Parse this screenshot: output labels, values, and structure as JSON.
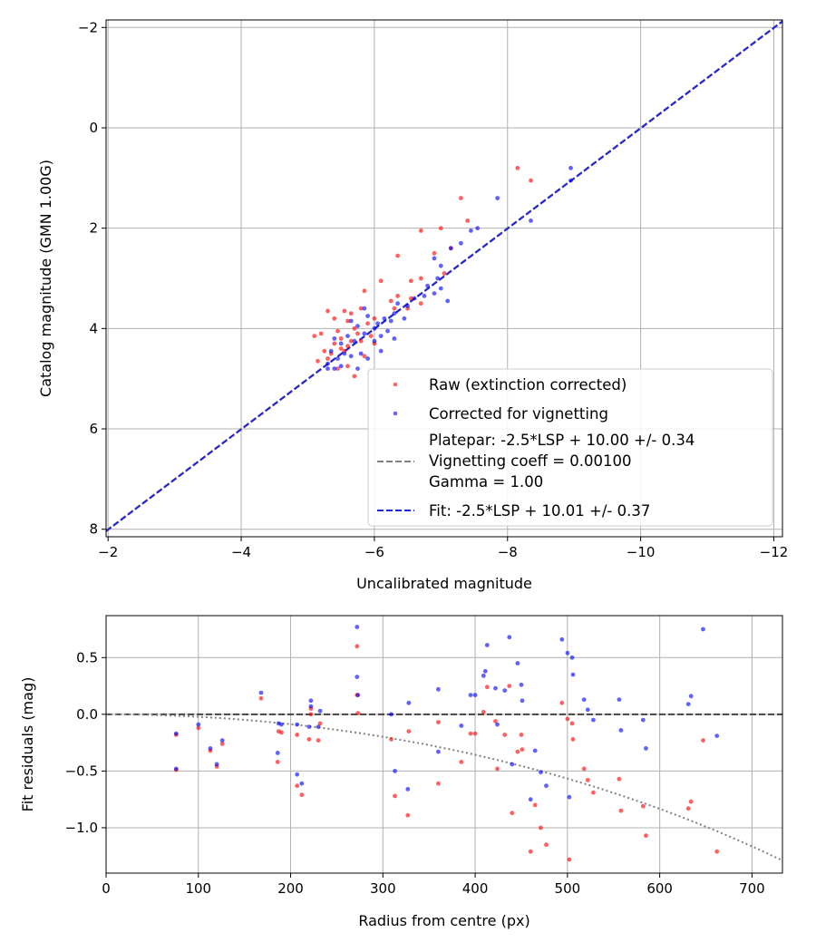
{
  "chart_data": [
    {
      "type": "scatter",
      "xlabel": "Uncalibrated magnitude",
      "ylabel": "Catalog magnitude (GMN 1.00G)",
      "xlim": [
        -1.97,
        -12.13
      ],
      "ylim": [
        8.15,
        -2.15
      ],
      "xticks": [
        -2,
        -4,
        -6,
        -8,
        -10,
        -12
      ],
      "yticks": [
        -2,
        0,
        2,
        4,
        6,
        8
      ],
      "xtick_labels": [
        "−2",
        "−4",
        "−6",
        "−8",
        "−10",
        "−12"
      ],
      "ytick_labels": [
        "−2",
        "0",
        "2",
        "4",
        "6",
        "8"
      ],
      "grid": true,
      "legend_position": "lower-right",
      "colors": {
        "raw": "#ff0000",
        "corrected": "#0000ff",
        "platepar": "#808080",
        "fit": "#2222dd"
      },
      "legend": {
        "raw_label": "Raw (extinction corrected)",
        "corrected_label": "Corrected for vignetting",
        "platepar_line1": "Platepar: -2.5*LSP + 10.00 +/- 0.34",
        "platepar_line2": "Vignetting coeff = 0.00100",
        "platepar_line3": "Gamma = 1.00",
        "fit_label": "Fit: -2.5*LSP + 10.01 +/- 0.37"
      },
      "lines": [
        {
          "name": "Platepar: -2.5*LSP + 10.00 +/- 0.34",
          "style": "dashed",
          "color": "#808080",
          "x": [
            -1.97,
            -12.13
          ],
          "y": [
            8.03,
            -2.13
          ]
        },
        {
          "name": "Fit: -2.5*LSP + 10.01 +/- 0.37",
          "style": "dashed",
          "color": "#2222dd",
          "x": [
            -1.97,
            -12.13
          ],
          "y": [
            8.04,
            -2.12
          ]
        }
      ],
      "series": [
        {
          "name": "Raw (extinction corrected)",
          "color": "#ff0000",
          "points": [
            [
              -8.15,
              0.8
            ],
            [
              -8.35,
              1.05
            ],
            [
              -7.3,
              1.4
            ],
            [
              -7.4,
              1.85
            ],
            [
              -7.0,
              2.0
            ],
            [
              -6.7,
              2.05
            ],
            [
              -7.15,
              2.4
            ],
            [
              -6.35,
              2.55
            ],
            [
              -6.9,
              2.5
            ],
            [
              -7.05,
              2.9
            ],
            [
              -6.7,
              3.0
            ],
            [
              -6.55,
              3.05
            ],
            [
              -6.1,
              3.05
            ],
            [
              -5.85,
              3.25
            ],
            [
              -6.35,
              3.35
            ],
            [
              -6.55,
              3.4
            ],
            [
              -6.25,
              3.45
            ],
            [
              -6.7,
              3.5
            ],
            [
              -6.5,
              3.6
            ],
            [
              -6.3,
              3.6
            ],
            [
              -5.55,
              3.65
            ],
            [
              -5.3,
              3.65
            ],
            [
              -5.8,
              3.6
            ],
            [
              -5.65,
              3.7
            ],
            [
              -5.4,
              3.8
            ],
            [
              -5.6,
              3.85
            ],
            [
              -5.9,
              3.9
            ],
            [
              -6.0,
              3.8
            ],
            [
              -5.7,
              4.0
            ],
            [
              -5.45,
              4.05
            ],
            [
              -5.2,
              4.1
            ],
            [
              -5.75,
              4.1
            ],
            [
              -5.95,
              4.15
            ],
            [
              -5.5,
              4.2
            ],
            [
              -5.65,
              4.25
            ],
            [
              -5.1,
              4.15
            ],
            [
              -5.6,
              4.35
            ],
            [
              -5.4,
              4.3
            ],
            [
              -5.55,
              4.45
            ],
            [
              -5.35,
              4.5
            ],
            [
              -5.25,
              4.45
            ],
            [
              -5.15,
              4.65
            ],
            [
              -5.3,
              4.6
            ],
            [
              -5.45,
              4.8
            ],
            [
              -5.7,
              4.95
            ],
            [
              -5.6,
              4.75
            ],
            [
              -5.8,
              4.25
            ],
            [
              -5.85,
              4.55
            ],
            [
              -6.0,
              4.3
            ],
            [
              -5.5,
              4.4
            ]
          ]
        },
        {
          "name": "Corrected for vignetting",
          "color": "#0000ff",
          "points": [
            [
              -8.95,
              0.8
            ],
            [
              -8.95,
              1.05
            ],
            [
              -7.85,
              1.4
            ],
            [
              -8.35,
              1.85
            ],
            [
              -7.55,
              2.0
            ],
            [
              -7.45,
              2.05
            ],
            [
              -7.15,
              2.4
            ],
            [
              -7.3,
              2.3
            ],
            [
              -6.9,
              2.6
            ],
            [
              -7.0,
              2.75
            ],
            [
              -6.95,
              3.0
            ],
            [
              -6.8,
              3.15
            ],
            [
              -7.0,
              3.2
            ],
            [
              -6.9,
              3.3
            ],
            [
              -6.75,
              3.35
            ],
            [
              -7.1,
              3.45
            ],
            [
              -6.6,
              3.4
            ],
            [
              -6.5,
              3.55
            ],
            [
              -6.35,
              3.5
            ],
            [
              -6.3,
              3.7
            ],
            [
              -6.45,
              3.8
            ],
            [
              -6.15,
              3.8
            ],
            [
              -6.25,
              3.85
            ],
            [
              -6.05,
              3.9
            ],
            [
              -5.85,
              3.6
            ],
            [
              -5.9,
              3.75
            ],
            [
              -6.0,
              4.0
            ],
            [
              -6.2,
              4.05
            ],
            [
              -5.75,
              3.95
            ],
            [
              -5.6,
              4.15
            ],
            [
              -5.85,
              4.1
            ],
            [
              -6.1,
              4.15
            ],
            [
              -6.0,
              4.25
            ],
            [
              -5.7,
              4.25
            ],
            [
              -5.4,
              4.2
            ],
            [
              -5.5,
              4.3
            ],
            [
              -5.35,
              4.45
            ],
            [
              -5.55,
              4.5
            ],
            [
              -5.65,
              4.55
            ],
            [
              -5.45,
              4.6
            ],
            [
              -5.8,
              4.5
            ],
            [
              -5.9,
              4.6
            ],
            [
              -5.3,
              4.7
            ],
            [
              -5.4,
              4.8
            ],
            [
              -5.5,
              4.75
            ],
            [
              -5.3,
              4.8
            ],
            [
              -5.75,
              4.8
            ],
            [
              -6.1,
              4.45
            ],
            [
              -6.3,
              4.2
            ],
            [
              -5.65,
              3.85
            ]
          ]
        }
      ]
    },
    {
      "type": "scatter",
      "xlabel": "Radius from centre (px)",
      "ylabel": "Fit residuals (mag)",
      "xlim": [
        0,
        733
      ],
      "ylim": [
        -1.4,
        0.87
      ],
      "xticks": [
        0,
        100,
        200,
        300,
        400,
        500,
        600,
        700
      ],
      "yticks": [
        -1.0,
        -0.5,
        0.0,
        0.5
      ],
      "xtick_labels": [
        "0",
        "100",
        "200",
        "300",
        "400",
        "500",
        "600",
        "700"
      ],
      "ytick_labels": [
        "−1.0",
        "−0.5",
        "0.0",
        "0.5"
      ],
      "grid": true,
      "lines": [
        {
          "name": "zero",
          "style": "dashed",
          "color": "#444444",
          "x": [
            0,
            733
          ],
          "y": [
            0,
            0
          ]
        },
        {
          "name": "vignetting",
          "style": "dotted",
          "color": "#808080",
          "type": "vignetting",
          "coeff": 0.001
        }
      ],
      "series": [
        {
          "name": "Raw (extinction corrected)",
          "color": "#ff0000",
          "points": [
            [
              76,
              -0.18
            ],
            [
              76,
              -0.49
            ],
            [
              100,
              -0.12
            ],
            [
              113,
              -0.32
            ],
            [
              120,
              -0.46
            ],
            [
              126,
              -0.26
            ],
            [
              168,
              0.14
            ],
            [
              186,
              -0.42
            ],
            [
              187,
              -0.15
            ],
            [
              190,
              -0.16
            ],
            [
              207,
              -0.18
            ],
            [
              207,
              -0.63
            ],
            [
              212,
              -0.71
            ],
            [
              220,
              -0.22
            ],
            [
              222,
              0.05
            ],
            [
              222,
              0.0
            ],
            [
              230,
              -0.23
            ],
            [
              232,
              -0.08
            ],
            [
              272,
              0.6
            ],
            [
              272,
              0.17
            ],
            [
              273,
              0.01
            ],
            [
              309,
              -0.22
            ],
            [
              313,
              -0.72
            ],
            [
              327,
              -0.89
            ],
            [
              328,
              -0.15
            ],
            [
              360,
              -0.07
            ],
            [
              360,
              -0.61
            ],
            [
              385,
              -0.42
            ],
            [
              395,
              -0.17
            ],
            [
              400,
              -0.17
            ],
            [
              409,
              0.02
            ],
            [
              413,
              0.24
            ],
            [
              422,
              -0.06
            ],
            [
              424,
              -0.48
            ],
            [
              432,
              -0.18
            ],
            [
              437,
              0.25
            ],
            [
              440,
              -0.87
            ],
            [
              446,
              -0.33
            ],
            [
              450,
              -0.18
            ],
            [
              451,
              -0.31
            ],
            [
              460,
              -1.21
            ],
            [
              465,
              -0.8
            ],
            [
              471,
              -1.0
            ],
            [
              477,
              -1.15
            ],
            [
              494,
              0.1
            ],
            [
              500,
              -0.04
            ],
            [
              502,
              -1.28
            ],
            [
              505,
              -0.08
            ],
            [
              506,
              -0.22
            ],
            [
              518,
              -0.48
            ],
            [
              522,
              -0.58
            ],
            [
              528,
              -0.69
            ],
            [
              556,
              -0.57
            ],
            [
              558,
              -0.85
            ],
            [
              582,
              -0.81
            ],
            [
              585,
              -1.07
            ],
            [
              631,
              -0.83
            ],
            [
              634,
              -0.77
            ],
            [
              647,
              -0.23
            ],
            [
              662,
              -1.21
            ]
          ]
        },
        {
          "name": "Corrected for vignetting",
          "color": "#0000ff",
          "points": [
            [
              76,
              -0.17
            ],
            [
              76,
              -0.48
            ],
            [
              100,
              -0.09
            ],
            [
              113,
              -0.3
            ],
            [
              120,
              -0.44
            ],
            [
              126,
              -0.23
            ],
            [
              168,
              0.19
            ],
            [
              186,
              -0.34
            ],
            [
              187,
              -0.08
            ],
            [
              190,
              -0.09
            ],
            [
              207,
              -0.09
            ],
            [
              207,
              -0.53
            ],
            [
              212,
              -0.61
            ],
            [
              220,
              -0.11
            ],
            [
              222,
              0.12
            ],
            [
              222,
              0.07
            ],
            [
              230,
              -0.11
            ],
            [
              232,
              0.03
            ],
            [
              272,
              0.77
            ],
            [
              272,
              0.33
            ],
            [
              273,
              0.17
            ],
            [
              309,
              -0.0
            ],
            [
              313,
              -0.5
            ],
            [
              327,
              -0.66
            ],
            [
              328,
              0.1
            ],
            [
              360,
              0.22
            ],
            [
              360,
              -0.33
            ],
            [
              385,
              -0.1
            ],
            [
              395,
              0.17
            ],
            [
              400,
              0.17
            ],
            [
              409,
              0.34
            ],
            [
              411,
              0.38
            ],
            [
              413,
              0.61
            ],
            [
              422,
              0.23
            ],
            [
              424,
              -0.09
            ],
            [
              432,
              0.21
            ],
            [
              437,
              0.68
            ],
            [
              440,
              -0.44
            ],
            [
              446,
              0.45
            ],
            [
              450,
              0.26
            ],
            [
              451,
              0.12
            ],
            [
              460,
              -0.75
            ],
            [
              465,
              -0.32
            ],
            [
              471,
              -0.51
            ],
            [
              477,
              -0.63
            ],
            [
              494,
              0.66
            ],
            [
              500,
              0.54
            ],
            [
              502,
              -0.73
            ],
            [
              505,
              0.5
            ],
            [
              506,
              0.35
            ],
            [
              518,
              0.13
            ],
            [
              522,
              0.04
            ],
            [
              528,
              -0.05
            ],
            [
              556,
              0.13
            ],
            [
              558,
              -0.14
            ],
            [
              582,
              -0.05
            ],
            [
              585,
              -0.3
            ],
            [
              631,
              0.09
            ],
            [
              634,
              0.16
            ],
            [
              647,
              0.75
            ],
            [
              662,
              -0.19
            ]
          ]
        }
      ]
    }
  ]
}
